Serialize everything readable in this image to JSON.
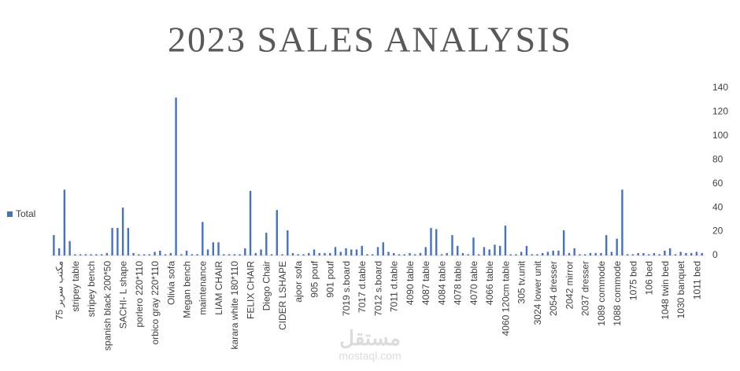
{
  "chart_data": {
    "type": "bar",
    "title": "2023 SALES ANALYSIS",
    "categories": [
      "75 مكتب سرير",
      null,
      null,
      "stripey table",
      null,
      null,
      "stripey bench",
      null,
      null,
      "spanish black 200*50",
      null,
      null,
      "SACHI- L shape",
      null,
      null,
      "porlero 220*110",
      null,
      null,
      "orbico gray 220*110",
      null,
      null,
      "Olivia sofa",
      null,
      null,
      "Megan bench",
      null,
      null,
      "maintenance",
      null,
      null,
      "LIAM CHAIR",
      null,
      null,
      "karara white 180*110",
      null,
      null,
      "FELIX CHAIR",
      null,
      null,
      "Diego Chair",
      null,
      null,
      "CIDER LSHAPE",
      null,
      null,
      "ajoor sofa",
      null,
      null,
      "905 pouf",
      null,
      null,
      "901 pouf",
      null,
      null,
      "7019 s.board",
      null,
      null,
      "7017 d.table",
      null,
      null,
      "7012 s.board",
      null,
      null,
      "7011 d.table",
      null,
      null,
      "4090 table",
      null,
      null,
      "4087 table",
      null,
      null,
      "4084 table",
      null,
      null,
      "4078 table",
      null,
      null,
      "4070 table",
      null,
      null,
      "4066 table",
      null,
      null,
      "4060 120cm table",
      null,
      null,
      "305 tv.unit",
      null,
      null,
      "3024 lower unit",
      null,
      null,
      "2054 dresser",
      null,
      null,
      "2042 mirror",
      null,
      null,
      "2037 dresser",
      null,
      null,
      "1089 commode",
      null,
      null,
      "1088 commode",
      null,
      null,
      "1075 bed",
      null,
      null,
      "106 bed",
      null,
      null,
      "1048 twin bed",
      null,
      null,
      "1030 banquet",
      null,
      null,
      "1011 bed",
      null,
      null
    ],
    "series": [
      {
        "name": "Total",
        "color": "#4472c4",
        "values": [
          17,
          6,
          55,
          12,
          1,
          1,
          1,
          1,
          1,
          1,
          2,
          23,
          23,
          40,
          23,
          2,
          1,
          1,
          1,
          3,
          4,
          1,
          2,
          132,
          1,
          4,
          1,
          1,
          28,
          5,
          11,
          11,
          1,
          1,
          1,
          1,
          6,
          54,
          2,
          5,
          19,
          1,
          38,
          1,
          21,
          2,
          1,
          1,
          2,
          5,
          2,
          2,
          2,
          7,
          3,
          6,
          5,
          5,
          8,
          1,
          1,
          7,
          11,
          3,
          2,
          1,
          1,
          2,
          1,
          2,
          7,
          23,
          22,
          1,
          2,
          17,
          8,
          2,
          1,
          15,
          1,
          7,
          5,
          9,
          8,
          25,
          1,
          1,
          3,
          8,
          1,
          1,
          2,
          3,
          4,
          4,
          21,
          2,
          6,
          1,
          1,
          2,
          2,
          2,
          17,
          3,
          14,
          55,
          1,
          1,
          2,
          2,
          1,
          2,
          1,
          4,
          6,
          1,
          3,
          2,
          2,
          3,
          2
        ]
      }
    ],
    "ylim": [
      0,
      140
    ],
    "yticks": [
      0,
      20,
      40,
      60,
      80,
      100,
      120,
      140
    ],
    "legend": "left"
  },
  "watermark": {
    "logo": "مستقل",
    "url": "mostaql.com"
  }
}
